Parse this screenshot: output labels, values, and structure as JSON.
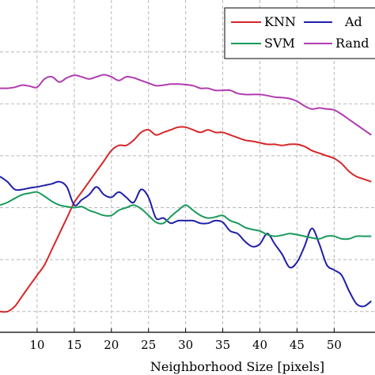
{
  "chart_data": {
    "type": "line",
    "xlabel": "Neighborhood Size [pixels]",
    "ylabel": "",
    "xlim": [
      5.5,
      55
    ],
    "xticks": [
      10,
      15,
      20,
      25,
      30,
      35,
      40,
      45,
      50
    ],
    "grid": true,
    "legend_placement": "top-right",
    "series": [
      {
        "name": "KNN",
        "color": "#d62728",
        "x": [
          5,
          6,
          7,
          8,
          9,
          10,
          11,
          12,
          13,
          14,
          15,
          16,
          17,
          18,
          19,
          20,
          21,
          22,
          23,
          24,
          25,
          26,
          27,
          28,
          29,
          30,
          31,
          32,
          33,
          34,
          35,
          36,
          37,
          38,
          39,
          40,
          41,
          42,
          43,
          44,
          45,
          46,
          47,
          48,
          49,
          50,
          51,
          52,
          53,
          54,
          55
        ],
        "y": [
          0.4,
          0.4,
          0.41,
          0.43,
          0.45,
          0.47,
          0.49,
          0.52,
          0.55,
          0.58,
          0.61,
          0.63,
          0.65,
          0.67,
          0.69,
          0.71,
          0.72,
          0.72,
          0.73,
          0.745,
          0.75,
          0.74,
          0.745,
          0.75,
          0.755,
          0.755,
          0.75,
          0.745,
          0.75,
          0.745,
          0.745,
          0.74,
          0.735,
          0.73,
          0.728,
          0.725,
          0.722,
          0.722,
          0.72,
          0.722,
          0.722,
          0.718,
          0.71,
          0.705,
          0.7,
          0.695,
          0.685,
          0.67,
          0.66,
          0.655,
          0.65
        ]
      },
      {
        "name": "AdaBoost",
        "color": "#1f1fa8",
        "x": [
          5,
          6,
          7,
          8,
          9,
          10,
          11,
          12,
          13,
          14,
          15,
          16,
          17,
          18,
          19,
          20,
          21,
          22,
          23,
          24,
          25,
          26,
          27,
          28,
          29,
          30,
          31,
          32,
          33,
          34,
          35,
          36,
          37,
          38,
          39,
          40,
          41,
          42,
          43,
          44,
          45,
          46,
          47,
          48,
          49,
          50,
          51,
          52,
          53,
          54,
          55
        ],
        "y": [
          0.66,
          0.65,
          0.635,
          0.635,
          0.638,
          0.64,
          0.643,
          0.646,
          0.65,
          0.64,
          0.605,
          0.615,
          0.625,
          0.64,
          0.625,
          0.62,
          0.63,
          0.62,
          0.61,
          0.635,
          0.62,
          0.58,
          0.58,
          0.57,
          0.575,
          0.575,
          0.575,
          0.57,
          0.57,
          0.575,
          0.572,
          0.555,
          0.55,
          0.535,
          0.525,
          0.53,
          0.55,
          0.53,
          0.51,
          0.485,
          0.495,
          0.525,
          0.56,
          0.53,
          0.49,
          0.48,
          0.47,
          0.44,
          0.415,
          0.41,
          0.42
        ]
      },
      {
        "name": "SVM",
        "color": "#1a9a5c",
        "x": [
          5,
          6,
          7,
          8,
          9,
          10,
          11,
          12,
          13,
          14,
          15,
          16,
          17,
          18,
          19,
          20,
          21,
          22,
          23,
          24,
          25,
          26,
          27,
          28,
          29,
          30,
          31,
          32,
          33,
          34,
          35,
          36,
          37,
          38,
          39,
          40,
          41,
          42,
          43,
          44,
          45,
          46,
          47,
          48,
          49,
          50,
          51,
          52,
          53,
          54,
          55
        ],
        "y": [
          0.605,
          0.61,
          0.618,
          0.625,
          0.628,
          0.63,
          0.622,
          0.612,
          0.605,
          0.602,
          0.6,
          0.602,
          0.595,
          0.59,
          0.585,
          0.585,
          0.595,
          0.6,
          0.605,
          0.598,
          0.585,
          0.572,
          0.57,
          0.583,
          0.595,
          0.605,
          0.595,
          0.585,
          0.58,
          0.582,
          0.585,
          0.575,
          0.57,
          0.562,
          0.558,
          0.555,
          0.548,
          0.545,
          0.547,
          0.55,
          0.548,
          0.545,
          0.542,
          0.54,
          0.545,
          0.545,
          0.54,
          0.54,
          0.545,
          0.545,
          0.545
        ]
      },
      {
        "name": "RandomForest",
        "color": "#b03cb0",
        "x": [
          5,
          6,
          7,
          8,
          9,
          10,
          11,
          12,
          13,
          14,
          15,
          16,
          17,
          18,
          19,
          20,
          21,
          22,
          23,
          24,
          25,
          26,
          27,
          28,
          29,
          30,
          31,
          32,
          33,
          34,
          35,
          36,
          37,
          38,
          39,
          40,
          41,
          42,
          43,
          44,
          45,
          46,
          47,
          48,
          49,
          50,
          51,
          52,
          53,
          54,
          55
        ],
        "y": [
          0.83,
          0.83,
          0.832,
          0.836,
          0.834,
          0.832,
          0.848,
          0.852,
          0.842,
          0.85,
          0.855,
          0.852,
          0.848,
          0.852,
          0.856,
          0.852,
          0.845,
          0.852,
          0.85,
          0.845,
          0.84,
          0.835,
          0.836,
          0.838,
          0.838,
          0.837,
          0.835,
          0.83,
          0.83,
          0.826,
          0.826,
          0.826,
          0.82,
          0.818,
          0.818,
          0.818,
          0.816,
          0.813,
          0.812,
          0.81,
          0.805,
          0.796,
          0.79,
          0.792,
          0.79,
          0.788,
          0.78,
          0.77,
          0.76,
          0.75,
          0.74
        ]
      }
    ]
  },
  "legend": {
    "entries": [
      {
        "label": "KNN",
        "color": "#d62728"
      },
      {
        "label": "Ad",
        "color": "#1f1fa8"
      },
      {
        "label": "SVM",
        "color": "#1a9a5c"
      },
      {
        "label": "Rand",
        "color": "#b03cb0"
      }
    ]
  }
}
